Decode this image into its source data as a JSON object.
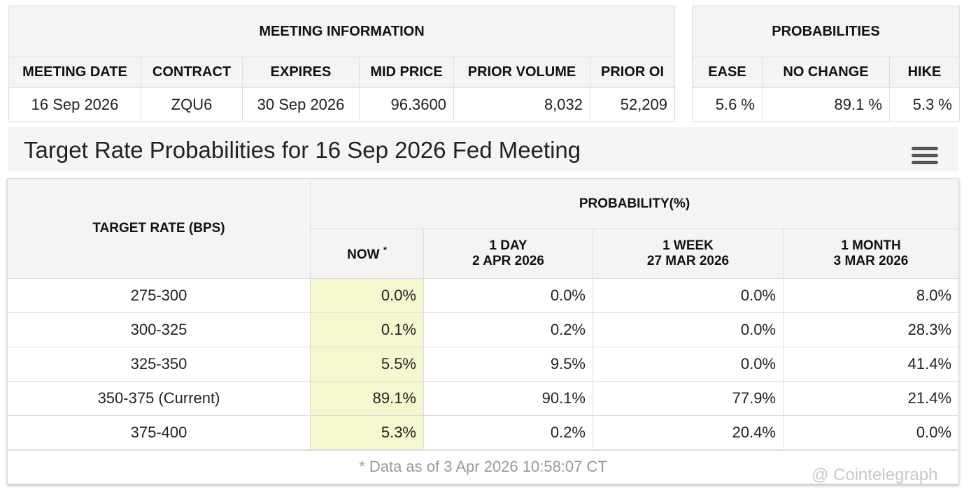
{
  "meeting_info": {
    "title": "MEETING INFORMATION",
    "headers": [
      "MEETING DATE",
      "CONTRACT",
      "EXPIRES",
      "MID PRICE",
      "PRIOR VOLUME",
      "PRIOR OI"
    ],
    "row": [
      "16 Sep 2026",
      "ZQU6",
      "30 Sep 2026",
      "96.3600",
      "8,032",
      "52,209"
    ]
  },
  "probabilities": {
    "title": "PROBABILITIES",
    "headers": [
      "EASE",
      "NO CHANGE",
      "HIKE"
    ],
    "row": [
      "5.6 %",
      "89.1 %",
      "5.3 %"
    ]
  },
  "chart_title": "Target Rate Probabilities for 16 Sep 2026 Fed Meeting",
  "rate_table": {
    "rate_header": "TARGET RATE (BPS)",
    "prob_header": "PROBABILITY(%)",
    "columns": [
      {
        "line1": "NOW",
        "mark": "*"
      },
      {
        "line1": "1 DAY",
        "line2": "2 APR 2026"
      },
      {
        "line1": "1 WEEK",
        "line2": "27 MAR 2026"
      },
      {
        "line1": "1 MONTH",
        "line2": "3 MAR 2026"
      }
    ],
    "rows": [
      [
        "275-300",
        "0.0%",
        "0.0%",
        "0.0%",
        "8.0%"
      ],
      [
        "300-325",
        "0.1%",
        "0.2%",
        "0.0%",
        "28.3%"
      ],
      [
        "325-350",
        "5.5%",
        "9.5%",
        "0.0%",
        "41.4%"
      ],
      [
        "350-375 (Current)",
        "89.1%",
        "90.1%",
        "77.9%",
        "21.4%"
      ],
      [
        "375-400",
        "5.3%",
        "0.2%",
        "20.4%",
        "0.0%"
      ]
    ],
    "footnote": "* Data as of 3 Apr 2026 10:58:07 CT"
  },
  "watermark": "@ Cointelegraph"
}
